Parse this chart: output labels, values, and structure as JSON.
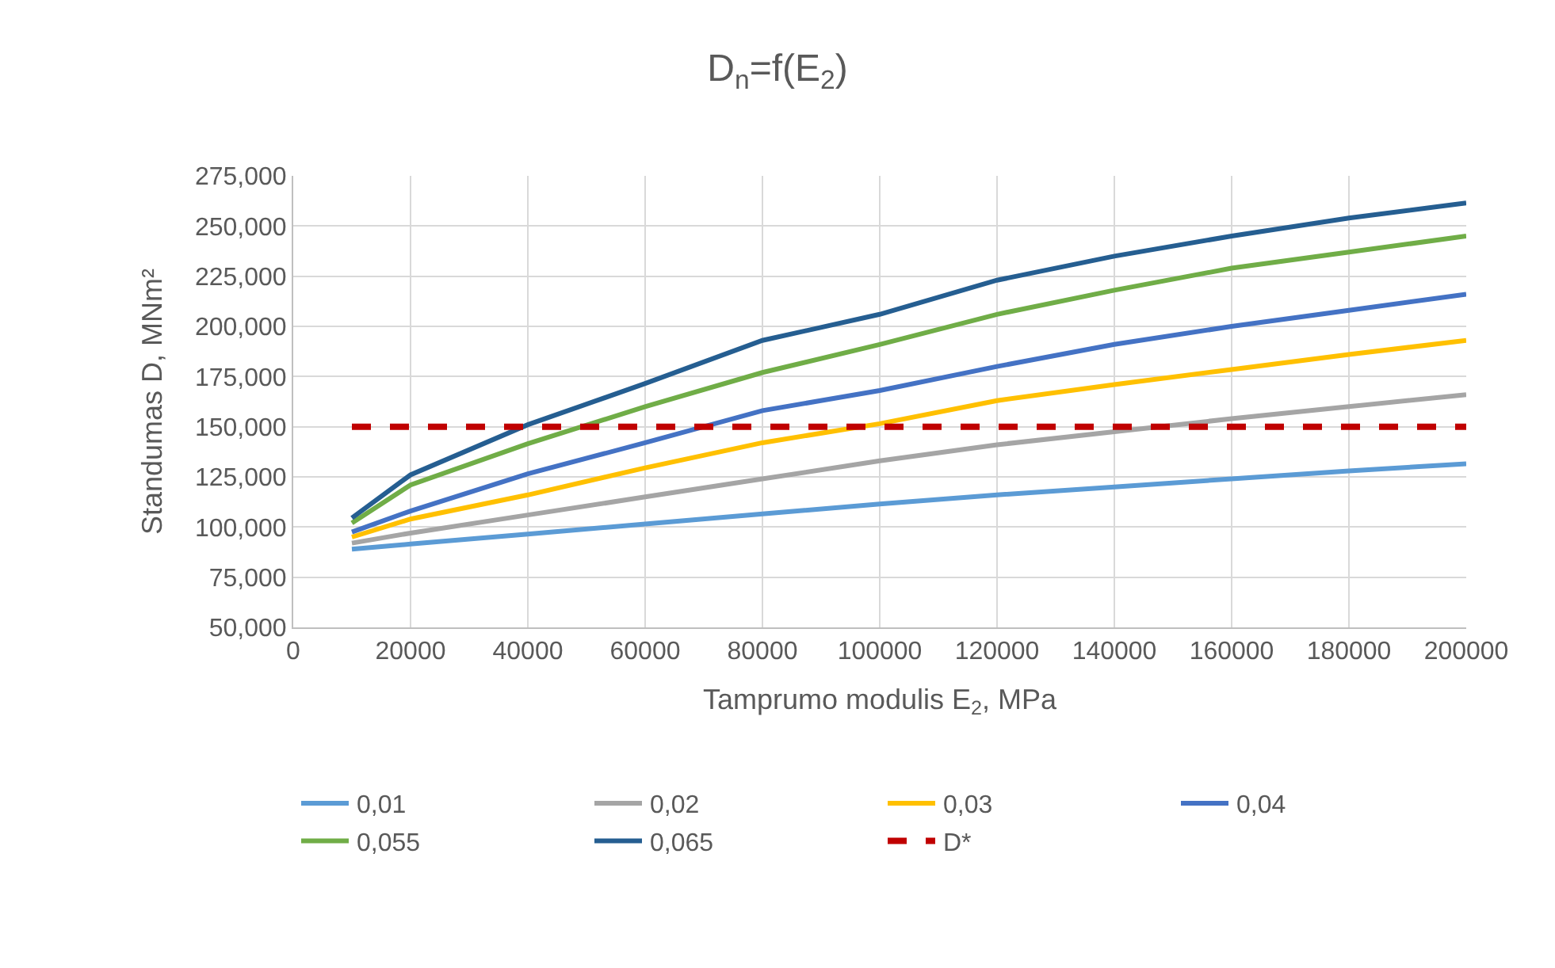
{
  "chart_data": {
    "type": "line",
    "title": "D$_{n}$=f(E$_{2}$)",
    "xlabel": "Tamprumo modulis E$_{2}$, MPa",
    "ylabel": "Standumas D, MNm²",
    "x": [
      10000,
      20000,
      40000,
      60000,
      80000,
      100000,
      120000,
      140000,
      160000,
      180000,
      200000
    ],
    "series": [
      {
        "name": "0,01",
        "color": "#5b9bd5",
        "values": [
          89,
          91.5,
          96.5,
          101.5,
          106.5,
          111.5,
          116,
          120,
          124,
          128,
          131.5
        ]
      },
      {
        "name": "0,02",
        "color": "#a5a5a5",
        "values": [
          92,
          97,
          106,
          115,
          124,
          133,
          141,
          147.5,
          154,
          160,
          166
        ]
      },
      {
        "name": "0,03",
        "color": "#ffc000",
        "values": [
          95,
          104,
          116,
          129.5,
          142,
          151.5,
          163,
          171,
          178.5,
          186,
          193
        ]
      },
      {
        "name": "0,04",
        "color": "#4472c4",
        "values": [
          97.5,
          108,
          126.5,
          142,
          158,
          168,
          180,
          191,
          200,
          208,
          216
        ]
      },
      {
        "name": "0,055",
        "color": "#70ad47",
        "values": [
          102,
          121,
          141.5,
          160,
          177,
          191,
          206,
          218,
          229,
          237,
          245
        ]
      },
      {
        "name": "0,065",
        "color": "#255e91",
        "values": [
          104.5,
          126,
          151,
          171.5,
          193,
          206,
          223,
          235,
          245,
          254,
          261.5
        ]
      },
      {
        "name": "D*",
        "color": "#c00000",
        "line_style": "dashed",
        "values": [
          150,
          150,
          150,
          150,
          150,
          150,
          150,
          150,
          150,
          150,
          150
        ]
      }
    ],
    "xlim": [
      0,
      200000
    ],
    "xticks": [
      0,
      20000,
      40000,
      60000,
      80000,
      100000,
      120000,
      140000,
      160000,
      180000,
      200000
    ],
    "ylim": [
      50,
      275
    ],
    "yticks": [
      {
        "value": 50,
        "label": "50,000"
      },
      {
        "value": 75,
        "label": "75,000"
      },
      {
        "value": 100,
        "label": "100,000"
      },
      {
        "value": 125,
        "label": "125,000"
      },
      {
        "value": 150,
        "label": "150,000"
      },
      {
        "value": 175,
        "label": "175,000"
      },
      {
        "value": 200,
        "label": "200,000"
      },
      {
        "value": 225,
        "label": "225,000"
      },
      {
        "value": 250,
        "label": "250,000"
      },
      {
        "value": 275,
        "label": "275,000"
      }
    ],
    "grid": true,
    "legend": "bottom",
    "line_style": "solid",
    "marker": "none"
  }
}
